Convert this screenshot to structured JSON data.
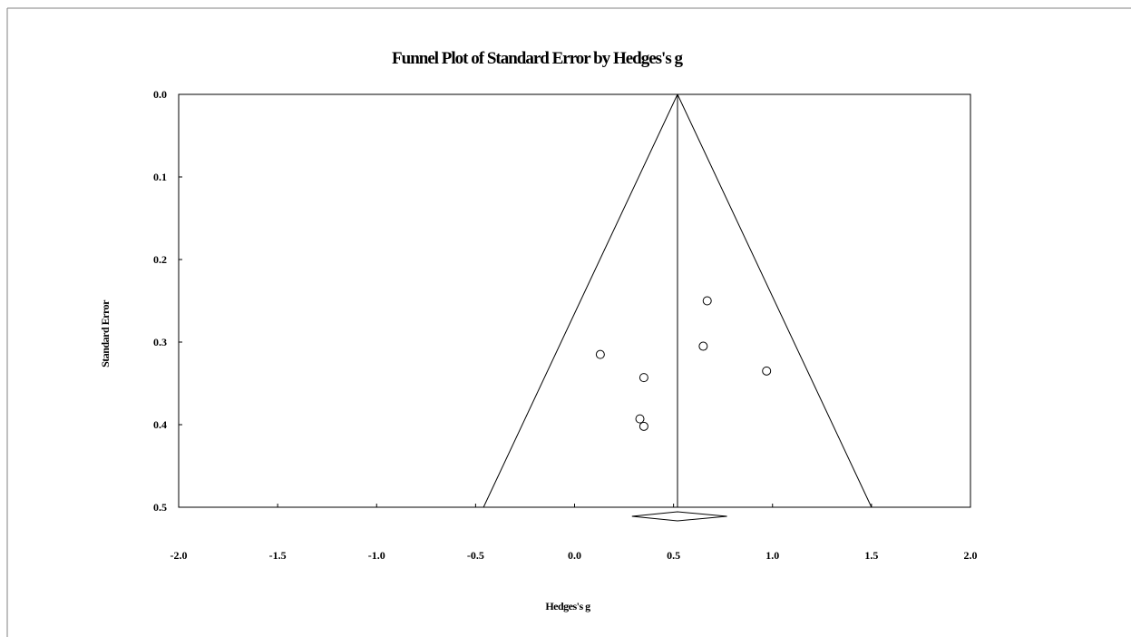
{
  "chart_data": {
    "type": "scatter",
    "title": "Funnel Plot of Standard Error by Hedges's g",
    "xlabel": "Hedges's g",
    "ylabel": "Standard Error",
    "xlim": [
      -2.0,
      2.0
    ],
    "ylim": [
      0.0,
      0.5
    ],
    "y_inverted": true,
    "x_ticks": [
      "-2.0",
      "-1.5",
      "-1.0",
      "-0.5",
      "0.0",
      "0.5",
      "1.0",
      "1.5",
      "2.0"
    ],
    "y_ticks": [
      "0.0",
      "0.1",
      "0.2",
      "0.3",
      "0.4",
      "0.5"
    ],
    "grid": false,
    "legend": "none",
    "summary_effect": 0.52,
    "summary_ci": [
      0.29,
      0.77
    ],
    "funnel": {
      "apex": [
        0.52,
        0.0
      ],
      "base_left": [
        -0.46,
        0.5
      ],
      "base_right": [
        1.5,
        0.5
      ]
    },
    "points": [
      {
        "x": 0.67,
        "y": 0.25
      },
      {
        "x": 0.65,
        "y": 0.305
      },
      {
        "x": 0.97,
        "y": 0.335
      },
      {
        "x": 0.13,
        "y": 0.315
      },
      {
        "x": 0.35,
        "y": 0.343
      },
      {
        "x": 0.33,
        "y": 0.393
      },
      {
        "x": 0.35,
        "y": 0.402
      }
    ]
  }
}
